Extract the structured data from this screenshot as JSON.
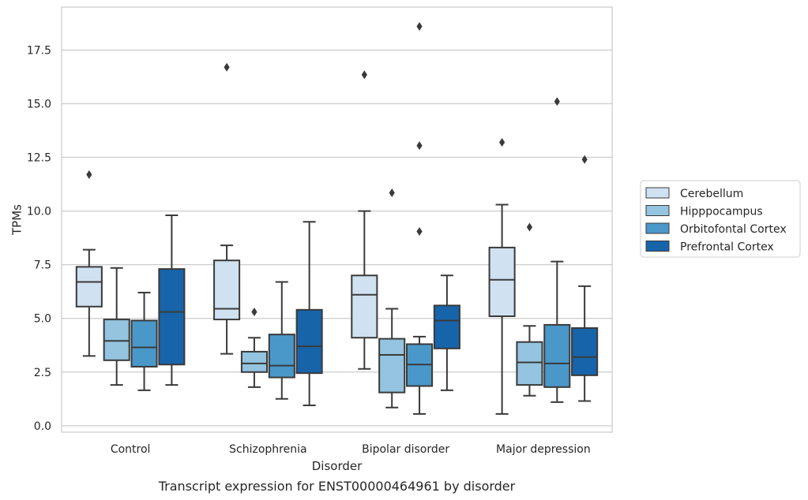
{
  "chart_data": {
    "type": "box",
    "xlabel": "Disorder",
    "ylabel": "TPMs",
    "caption": "Transcript expression for ENST00000464961 by disorder",
    "ylim": [
      -0.3,
      19.5
    ],
    "yticks": [
      0.0,
      2.5,
      5.0,
      7.5,
      10.0,
      12.5,
      15.0,
      17.5
    ],
    "ytick_labels": [
      "0.0",
      "2.5",
      "5.0",
      "7.5",
      "10.0",
      "12.5",
      "15.0",
      "17.5"
    ],
    "grid": "horizontal",
    "legend_position": "right",
    "categories": [
      "Control",
      "Schizophrenia",
      "Bipolar disorder",
      "Major depression"
    ],
    "series": [
      {
        "name": "Cerebellum",
        "color": "#d0e1f2",
        "boxes": [
          {
            "whislo": 3.25,
            "q1": 5.55,
            "med": 6.7,
            "q3": 7.4,
            "whishi": 8.2,
            "fliers": [
              11.7
            ]
          },
          {
            "whislo": 3.35,
            "q1": 4.95,
            "med": 5.45,
            "q3": 7.7,
            "whishi": 8.4,
            "fliers": [
              16.7
            ]
          },
          {
            "whislo": 2.65,
            "q1": 4.1,
            "med": 6.1,
            "q3": 7.0,
            "whishi": 10.0,
            "fliers": [
              16.35
            ]
          },
          {
            "whislo": 0.55,
            "q1": 5.1,
            "med": 6.8,
            "q3": 8.3,
            "whishi": 10.3,
            "fliers": [
              13.2
            ]
          }
        ]
      },
      {
        "name": "Hipppocampus",
        "color": "#94c4df",
        "boxes": [
          {
            "whislo": 1.9,
            "q1": 3.05,
            "med": 3.95,
            "q3": 4.95,
            "whishi": 7.35,
            "fliers": []
          },
          {
            "whislo": 1.8,
            "q1": 2.5,
            "med": 2.9,
            "q3": 3.45,
            "whishi": 4.1,
            "fliers": [
              5.3
            ]
          },
          {
            "whislo": 0.85,
            "q1": 1.55,
            "med": 3.3,
            "q3": 4.05,
            "whishi": 5.45,
            "fliers": [
              10.85
            ]
          },
          {
            "whislo": 1.4,
            "q1": 1.9,
            "med": 2.95,
            "q3": 3.9,
            "whishi": 4.65,
            "fliers": [
              9.25
            ]
          }
        ]
      },
      {
        "name": "Orbitofontal Cortex",
        "color": "#4a98c9",
        "boxes": [
          {
            "whislo": 1.65,
            "q1": 2.75,
            "med": 3.65,
            "q3": 4.9,
            "whishi": 6.2,
            "fliers": []
          },
          {
            "whislo": 1.25,
            "q1": 2.25,
            "med": 2.8,
            "q3": 4.25,
            "whishi": 6.7,
            "fliers": []
          },
          {
            "whislo": 0.55,
            "q1": 1.85,
            "med": 2.85,
            "q3": 3.8,
            "whishi": 4.15,
            "fliers": [
              9.05,
              13.05,
              18.6
            ]
          },
          {
            "whislo": 1.1,
            "q1": 1.8,
            "med": 2.9,
            "q3": 4.7,
            "whishi": 7.65,
            "fliers": [
              15.1
            ]
          }
        ]
      },
      {
        "name": "Prefrontal Cortex",
        "color": "#1764ab",
        "boxes": [
          {
            "whislo": 1.9,
            "q1": 2.85,
            "med": 5.3,
            "q3": 7.3,
            "whishi": 9.8,
            "fliers": []
          },
          {
            "whislo": 0.95,
            "q1": 2.45,
            "med": 3.7,
            "q3": 5.4,
            "whishi": 9.5,
            "fliers": []
          },
          {
            "whislo": 1.65,
            "q1": 3.6,
            "med": 4.9,
            "q3": 5.6,
            "whishi": 7.0,
            "fliers": []
          },
          {
            "whislo": 1.15,
            "q1": 2.35,
            "med": 3.2,
            "q3": 4.55,
            "whishi": 6.5,
            "fliers": [
              12.4
            ]
          }
        ]
      }
    ]
  }
}
